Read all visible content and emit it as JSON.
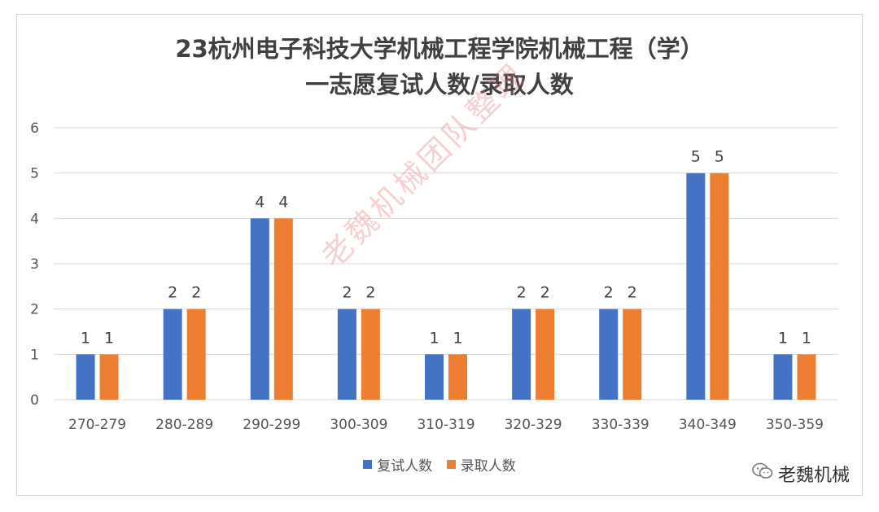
{
  "title_line1": "23杭州电子科技大学机械工程学院机械工程（学）",
  "title_line2": "一志愿复试人数/录取人数",
  "watermark": "老魏机械团队整理",
  "brand": "老魏机械",
  "brand_icon": "wechat-icon",
  "colors": {
    "series1": "#4472C4",
    "series2": "#ED7D31",
    "grid": "#d9d9d9"
  },
  "chart_data": {
    "type": "bar",
    "categories": [
      "270-279",
      "280-289",
      "290-299",
      "300-309",
      "310-319",
      "320-329",
      "330-339",
      "340-349",
      "350-359"
    ],
    "series": [
      {
        "name": "复试人数",
        "values": [
          1,
          2,
          4,
          2,
          1,
          2,
          2,
          5,
          1
        ]
      },
      {
        "name": "录取人数",
        "values": [
          1,
          2,
          4,
          2,
          1,
          2,
          2,
          5,
          1
        ]
      }
    ],
    "ylim": [
      0,
      6
    ],
    "yticks": [
      0,
      1,
      2,
      3,
      4,
      5,
      6
    ],
    "grid": true,
    "legend": "bottom"
  }
}
